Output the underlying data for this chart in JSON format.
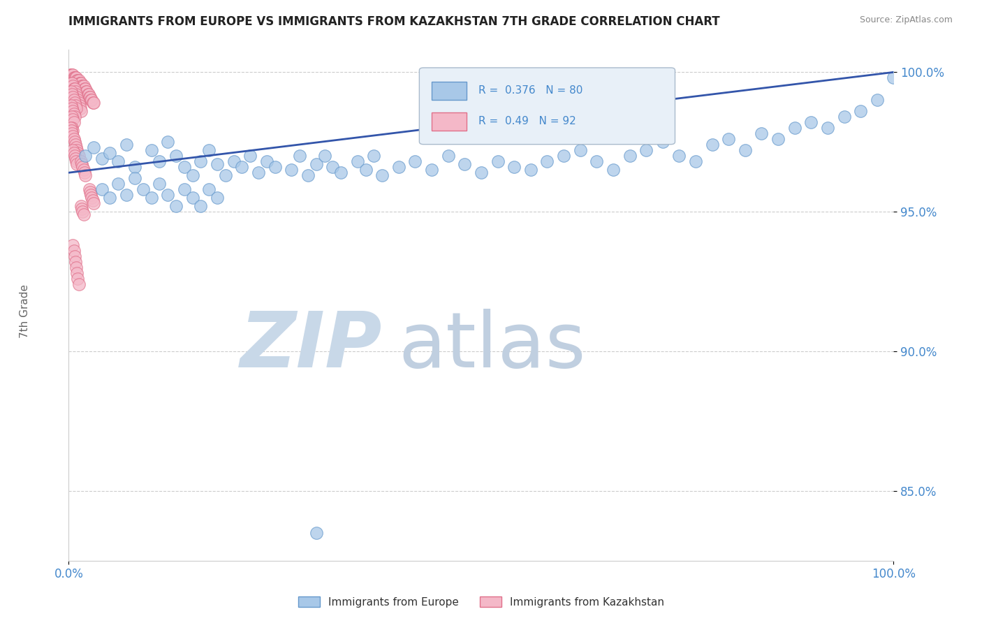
{
  "title": "IMMIGRANTS FROM EUROPE VS IMMIGRANTS FROM KAZAKHSTAN 7TH GRADE CORRELATION CHART",
  "source": "Source: ZipAtlas.com",
  "ylabel": "7th Grade",
  "blue_R": 0.376,
  "blue_N": 80,
  "pink_R": 0.49,
  "pink_N": 92,
  "xlim": [
    0.0,
    1.0
  ],
  "ylim": [
    0.825,
    1.008
  ],
  "yticks": [
    0.85,
    0.9,
    0.95,
    1.0
  ],
  "ytick_labels": [
    "85.0%",
    "90.0%",
    "95.0%",
    "100.0%"
  ],
  "blue_color": "#a8c8e8",
  "blue_edge": "#6699cc",
  "pink_color": "#f4b8c8",
  "pink_edge": "#e0708a",
  "trend_color": "#3355aa",
  "background": "#ffffff",
  "watermark_zip_color": "#c8d8e8",
  "watermark_atlas_color": "#c0cfe0",
  "legend_box_color": "#e8f0f8",
  "legend_box_edge": "#aabbcc",
  "tick_color": "#4488cc",
  "blue_scatter_x": [
    0.02,
    0.03,
    0.04,
    0.05,
    0.06,
    0.07,
    0.08,
    0.1,
    0.11,
    0.12,
    0.13,
    0.14,
    0.15,
    0.16,
    0.17,
    0.18,
    0.19,
    0.2,
    0.21,
    0.22,
    0.23,
    0.24,
    0.25,
    0.27,
    0.28,
    0.29,
    0.3,
    0.31,
    0.32,
    0.33,
    0.35,
    0.36,
    0.37,
    0.38,
    0.4,
    0.42,
    0.44,
    0.46,
    0.48,
    0.5,
    0.52,
    0.54,
    0.56,
    0.58,
    0.6,
    0.62,
    0.64,
    0.66,
    0.68,
    0.7,
    0.72,
    0.74,
    0.76,
    0.78,
    0.8,
    0.82,
    0.84,
    0.86,
    0.88,
    0.9,
    0.92,
    0.94,
    0.96,
    0.98,
    1.0,
    0.04,
    0.05,
    0.06,
    0.07,
    0.08,
    0.09,
    0.1,
    0.11,
    0.12,
    0.13,
    0.14,
    0.15,
    0.16,
    0.17,
    0.18
  ],
  "blue_scatter_y": [
    0.97,
    0.973,
    0.969,
    0.971,
    0.968,
    0.974,
    0.966,
    0.972,
    0.968,
    0.975,
    0.97,
    0.966,
    0.963,
    0.968,
    0.972,
    0.967,
    0.963,
    0.968,
    0.966,
    0.97,
    0.964,
    0.968,
    0.966,
    0.965,
    0.97,
    0.963,
    0.967,
    0.97,
    0.966,
    0.964,
    0.968,
    0.965,
    0.97,
    0.963,
    0.966,
    0.968,
    0.965,
    0.97,
    0.967,
    0.964,
    0.968,
    0.966,
    0.965,
    0.968,
    0.97,
    0.972,
    0.968,
    0.965,
    0.97,
    0.972,
    0.975,
    0.97,
    0.968,
    0.974,
    0.976,
    0.972,
    0.978,
    0.976,
    0.98,
    0.982,
    0.98,
    0.984,
    0.986,
    0.99,
    0.998,
    0.958,
    0.955,
    0.96,
    0.956,
    0.962,
    0.958,
    0.955,
    0.96,
    0.956,
    0.952,
    0.958,
    0.955,
    0.952,
    0.958,
    0.955
  ],
  "pink_scatter_x": [
    0.002,
    0.003,
    0.004,
    0.005,
    0.006,
    0.007,
    0.008,
    0.009,
    0.01,
    0.011,
    0.012,
    0.013,
    0.014,
    0.015,
    0.016,
    0.017,
    0.018,
    0.019,
    0.02,
    0.021,
    0.022,
    0.023,
    0.024,
    0.025,
    0.026,
    0.027,
    0.028,
    0.029,
    0.03,
    0.003,
    0.004,
    0.005,
    0.006,
    0.007,
    0.008,
    0.009,
    0.01,
    0.011,
    0.012,
    0.013,
    0.014,
    0.015,
    0.003,
    0.004,
    0.005,
    0.006,
    0.007,
    0.008,
    0.009,
    0.003,
    0.004,
    0.005,
    0.006,
    0.007,
    0.004,
    0.005,
    0.006,
    0.004,
    0.005,
    0.002,
    0.003,
    0.004,
    0.005,
    0.006,
    0.007,
    0.008,
    0.009,
    0.01,
    0.011,
    0.012,
    0.005,
    0.006,
    0.007,
    0.008,
    0.009,
    0.01,
    0.015,
    0.016,
    0.017,
    0.018,
    0.019,
    0.02,
    0.025,
    0.026,
    0.027,
    0.028,
    0.029,
    0.03,
    0.015,
    0.016,
    0.017,
    0.018
  ],
  "pink_scatter_y": [
    0.999,
    0.999,
    0.999,
    0.999,
    0.998,
    0.998,
    0.998,
    0.998,
    0.997,
    0.997,
    0.997,
    0.996,
    0.996,
    0.996,
    0.995,
    0.995,
    0.995,
    0.994,
    0.994,
    0.993,
    0.993,
    0.992,
    0.992,
    0.991,
    0.991,
    0.99,
    0.99,
    0.989,
    0.989,
    0.996,
    0.996,
    0.995,
    0.994,
    0.994,
    0.993,
    0.992,
    0.991,
    0.99,
    0.989,
    0.988,
    0.987,
    0.986,
    0.993,
    0.992,
    0.991,
    0.99,
    0.989,
    0.988,
    0.987,
    0.988,
    0.987,
    0.986,
    0.985,
    0.984,
    0.984,
    0.983,
    0.982,
    0.98,
    0.979,
    0.98,
    0.979,
    0.978,
    0.977,
    0.976,
    0.975,
    0.974,
    0.973,
    0.972,
    0.971,
    0.97,
    0.972,
    0.971,
    0.97,
    0.969,
    0.968,
    0.967,
    0.968,
    0.967,
    0.966,
    0.965,
    0.964,
    0.963,
    0.958,
    0.957,
    0.956,
    0.955,
    0.954,
    0.953,
    0.952,
    0.951,
    0.95,
    0.949
  ],
  "pink_low_x": [
    0.005,
    0.006,
    0.007,
    0.008,
    0.009,
    0.01,
    0.011,
    0.012
  ],
  "pink_low_y": [
    0.938,
    0.936,
    0.934,
    0.932,
    0.93,
    0.928,
    0.926,
    0.924
  ],
  "blue_outlier_x": [
    0.3
  ],
  "blue_outlier_y": [
    0.835
  ],
  "trend_x": [
    0.0,
    1.0
  ],
  "trend_y": [
    0.964,
    1.0
  ]
}
